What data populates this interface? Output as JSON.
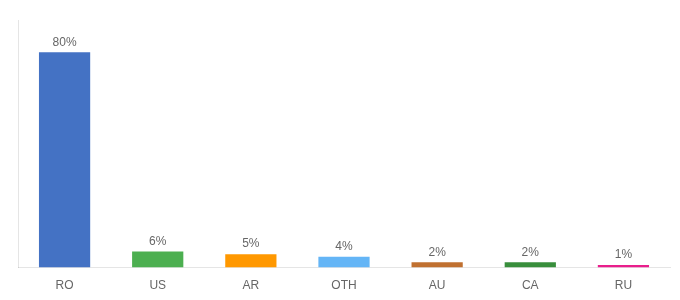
{
  "chart_data": {
    "type": "bar",
    "categories": [
      "RO",
      "US",
      "AR",
      "OTH",
      "AU",
      "CA",
      "RU"
    ],
    "values": [
      80,
      6,
      5,
      4,
      2,
      2,
      1
    ],
    "value_labels": [
      "80%",
      "6%",
      "5%",
      "4%",
      "2%",
      "2%",
      "1%"
    ],
    "colors": [
      "#4472c4",
      "#4caf50",
      "#ff9800",
      "#64b5f6",
      "#c07030",
      "#388e3c",
      "#e91e8c"
    ],
    "ylim": [
      0,
      92
    ],
    "data_labels": true,
    "tick_labels": "x",
    "grid": false
  }
}
